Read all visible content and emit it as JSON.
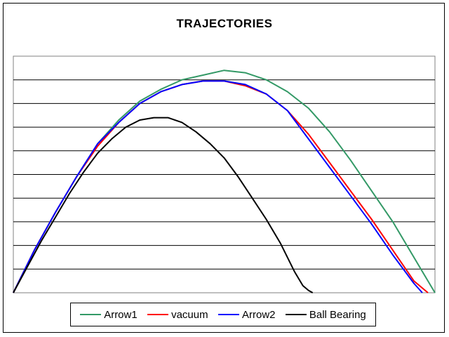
{
  "chart_data": {
    "type": "line",
    "title": "TRAJECTORIES",
    "xlabel": "",
    "ylabel": "",
    "xlim": [
      0,
      600
    ],
    "ylim": [
      0,
      100
    ],
    "grid": "horizontal",
    "legend_position": "bottom",
    "series": [
      {
        "name": "Arrow1",
        "color": "#339966",
        "x": [
          0,
          30,
          60,
          90,
          120,
          150,
          180,
          210,
          240,
          270,
          300,
          330,
          360,
          390,
          420,
          450,
          480,
          510,
          540,
          570,
          600
        ],
        "y": [
          0,
          18,
          34,
          49,
          63,
          73,
          81,
          86,
          90,
          92,
          94,
          93,
          90,
          85,
          78,
          68,
          56,
          43,
          30,
          15,
          0
        ]
      },
      {
        "name": "vacuum",
        "color": "#ff0000",
        "x": [
          0,
          30,
          60,
          90,
          120,
          150,
          180,
          210,
          240,
          270,
          300,
          330,
          360,
          390,
          420,
          450,
          480,
          510,
          540,
          570,
          590
        ],
        "y": [
          0,
          18,
          34,
          49,
          62,
          72,
          80,
          85,
          88,
          89.5,
          89.5,
          87.5,
          84,
          77,
          67,
          55,
          43,
          31,
          18,
          5,
          0
        ]
      },
      {
        "name": "Arrow2",
        "color": "#0000ff",
        "x": [
          0,
          30,
          60,
          90,
          120,
          150,
          180,
          210,
          240,
          270,
          300,
          330,
          360,
          390,
          420,
          450,
          480,
          510,
          540,
          570,
          582
        ],
        "y": [
          0,
          18,
          34,
          49,
          63,
          72,
          80,
          85,
          88,
          89.5,
          89.5,
          88,
          84,
          77,
          65,
          53,
          41,
          29,
          16,
          4,
          0
        ]
      },
      {
        "name": "Ball Bearing",
        "color": "#000000",
        "x": [
          0,
          20,
          40,
          60,
          80,
          100,
          120,
          140,
          160,
          180,
          200,
          220,
          240,
          260,
          280,
          300,
          320,
          340,
          360,
          380,
          400,
          412,
          420,
          426
        ],
        "y": [
          0,
          11,
          22,
          32,
          42,
          51,
          59,
          65,
          70,
          73,
          74,
          74,
          72,
          68,
          63,
          57,
          49,
          40,
          31,
          21,
          9,
          3,
          1,
          0
        ]
      }
    ]
  }
}
